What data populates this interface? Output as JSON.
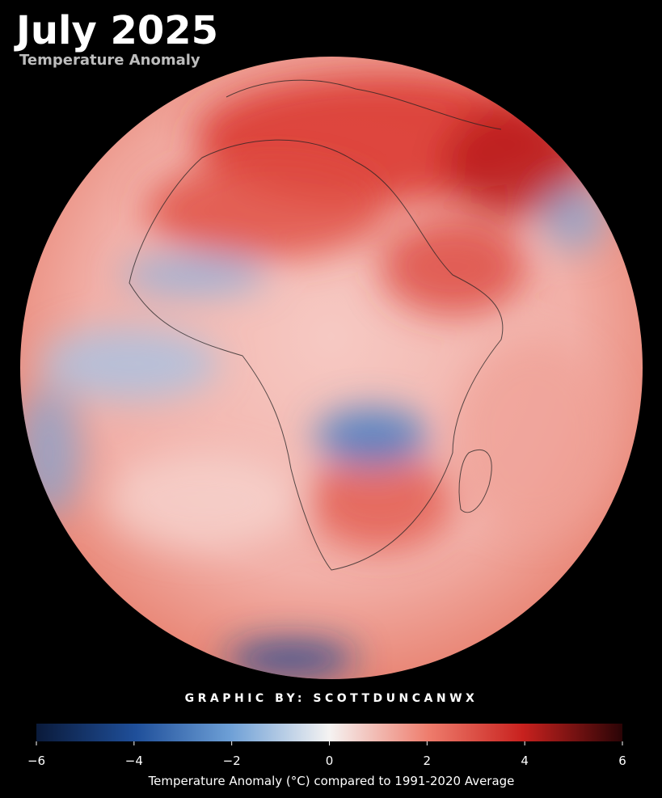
{
  "header": {
    "title": "July 2025",
    "subtitle": "Temperature Anomaly"
  },
  "credit": "GRAPHIC BY: SCOTTDUNCANWX",
  "colorbar": {
    "label": "Temperature Anomaly (°C) compared to 1991-2020 Average",
    "lim": [
      -6,
      6
    ],
    "ticks": [
      {
        "value": -6,
        "label": "−6"
      },
      {
        "value": -4,
        "label": "−4"
      },
      {
        "value": -2,
        "label": "−2"
      },
      0,
      2,
      4,
      6
    ]
  }
}
